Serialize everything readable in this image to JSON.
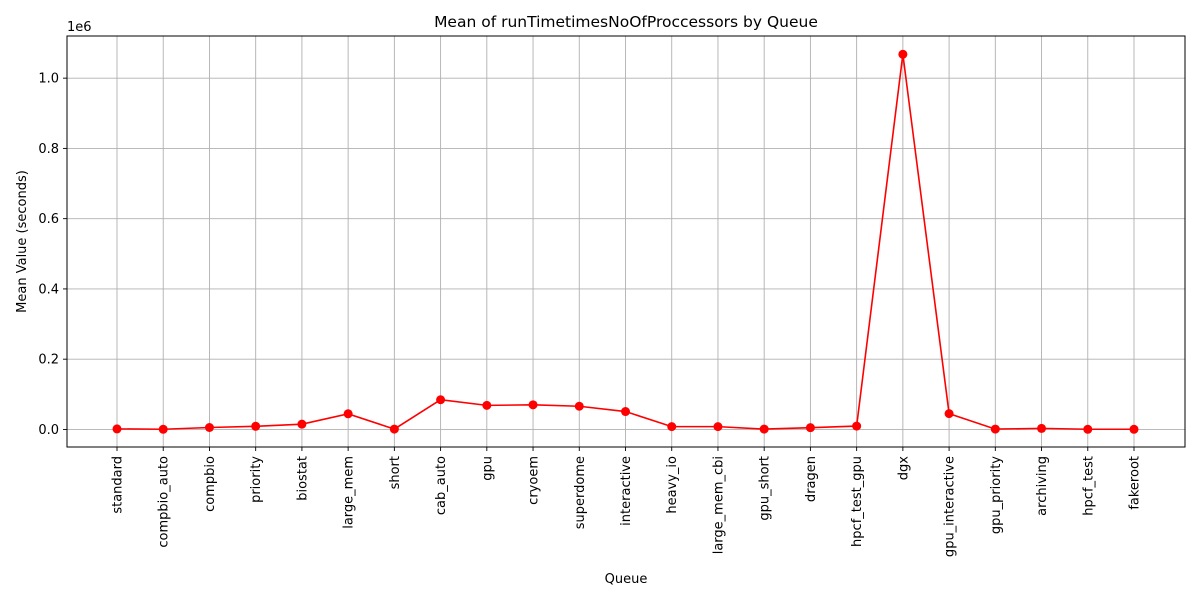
{
  "chart_data": {
    "type": "line",
    "title": "Mean of runTimetimesNoOfProccessors by Queue",
    "xlabel": "Queue",
    "ylabel": "Mean Value (seconds)",
    "y_offset_label": "1e6",
    "ylim": [
      -50000,
      1120000
    ],
    "yticks": [
      0,
      200000,
      400000,
      600000,
      800000,
      1000000
    ],
    "ytick_labels": [
      "0.0",
      "0.2",
      "0.4",
      "0.6",
      "0.8",
      "1.0"
    ],
    "grid": true,
    "line_color": "#ff0000",
    "categories": [
      "standard",
      "compbio_auto",
      "compbio",
      "priority",
      "biostat",
      "large_mem",
      "short",
      "cab_auto",
      "gpu",
      "cryoem",
      "superdome",
      "interactive",
      "heavy_io",
      "large_mem_cbi",
      "gpu_short",
      "dragen",
      "hpcf_test_gpu",
      "dgx",
      "gpu_interactive",
      "gpu_priority",
      "archiving",
      "hpcf_test",
      "fakeroot"
    ],
    "values": [
      1500,
      500,
      5500,
      9000,
      15000,
      44500,
      1000,
      84500,
      68500,
      70000,
      66000,
      51000,
      8000,
      8000,
      1000,
      5000,
      9500,
      1068000,
      45000,
      1000,
      3000,
      500,
      500
    ]
  }
}
